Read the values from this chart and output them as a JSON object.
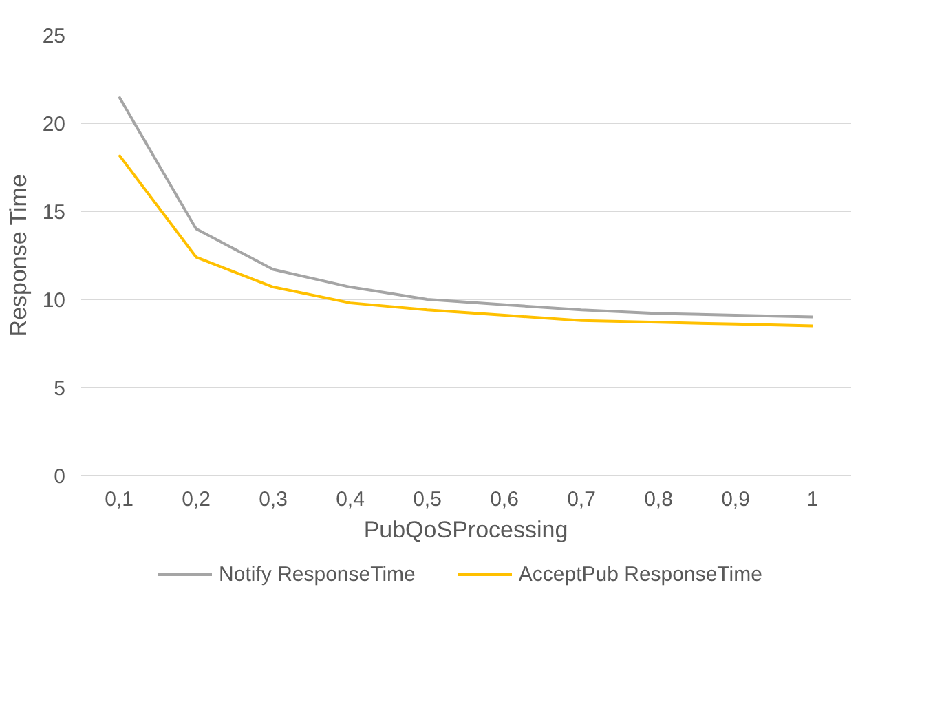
{
  "chart_data": {
    "type": "line",
    "xlabel": "PubQoSProcessing",
    "ylabel": "Response Time",
    "categories": [
      "0,1",
      "0,2",
      "0,3",
      "0,4",
      "0,5",
      "0,6",
      "0,7",
      "0,8",
      "0,9",
      "1"
    ],
    "series": [
      {
        "name": "Notify ResponseTime",
        "color": "#a5a5a5",
        "values": [
          21.5,
          14.0,
          11.7,
          10.7,
          10.0,
          9.7,
          9.4,
          9.2,
          9.1,
          9.0
        ]
      },
      {
        "name": "AcceptPub ResponseTime",
        "color": "#ffc000",
        "values": [
          18.2,
          12.4,
          10.7,
          9.8,
          9.4,
          9.1,
          8.8,
          8.7,
          8.6,
          8.5
        ]
      }
    ],
    "ylim": [
      0,
      25
    ],
    "yticks": [
      0,
      5,
      10,
      15,
      20,
      25
    ],
    "grid": "y",
    "legend": "bottom",
    "marker": "none",
    "line_style": "solid"
  }
}
